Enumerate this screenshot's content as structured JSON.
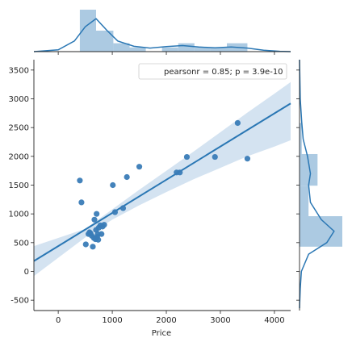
{
  "chart_data": {
    "type": "scatter",
    "kind": "jointplot-regression",
    "xlabel": "Price",
    "ylabel": "",
    "xlim": [
      -450,
      4300
    ],
    "ylim": [
      -680,
      3680
    ],
    "xticks": [
      0,
      1000,
      2000,
      3000,
      4000
    ],
    "yticks": [
      -500,
      0,
      500,
      1000,
      1500,
      2000,
      2500,
      3000,
      3500
    ],
    "legend": {
      "text": "pearsonr = 0.85; p = 3.9e-10",
      "position": "top-right"
    },
    "colors": {
      "points": "#3a7cb7",
      "line": "#2a77b4",
      "ci_band": "#cfe0ef",
      "hist": "#a3c4df",
      "kde": "#2a77b4"
    },
    "points": [
      [
        400,
        1580
      ],
      [
        430,
        1200
      ],
      [
        510,
        470
      ],
      [
        560,
        650
      ],
      [
        580,
        680
      ],
      [
        600,
        660
      ],
      [
        620,
        620
      ],
      [
        640,
        430
      ],
      [
        660,
        580
      ],
      [
        670,
        900
      ],
      [
        690,
        560
      ],
      [
        700,
        720
      ],
      [
        710,
        1000
      ],
      [
        720,
        600
      ],
      [
        730,
        650
      ],
      [
        740,
        550
      ],
      [
        750,
        760
      ],
      [
        780,
        800
      ],
      [
        800,
        650
      ],
      [
        820,
        780
      ],
      [
        850,
        810
      ],
      [
        1010,
        1500
      ],
      [
        1050,
        1030
      ],
      [
        1200,
        1100
      ],
      [
        1270,
        1640
      ],
      [
        1500,
        1820
      ],
      [
        2190,
        1720
      ],
      [
        2250,
        1720
      ],
      [
        2380,
        1990
      ],
      [
        2900,
        1990
      ],
      [
        3320,
        2580
      ],
      [
        3500,
        1960
      ]
    ],
    "regression": {
      "x": [
        -450,
        4300
      ],
      "y": [
        180,
        2920
      ]
    },
    "confidence_band": {
      "x": [
        -450,
        500,
        1000,
        1500,
        2000,
        2500,
        3000,
        3500,
        4000,
        4300
      ],
      "lower": [
        -80,
        590,
        900,
        1150,
        1380,
        1600,
        1800,
        2000,
        2170,
        2280
      ],
      "upper": [
        440,
        740,
        1080,
        1420,
        1750,
        2080,
        2420,
        2760,
        3090,
        3290
      ]
    },
    "x_marginal": {
      "bins": [
        [
          400,
          700,
          10
        ],
        [
          700,
          1020,
          5
        ],
        [
          1020,
          1320,
          2
        ],
        [
          1320,
          1620,
          1
        ],
        [
          1620,
          1920,
          0
        ],
        [
          1920,
          2220,
          1
        ],
        [
          2220,
          2520,
          2
        ],
        [
          2520,
          2820,
          1
        ],
        [
          2820,
          3120,
          1
        ],
        [
          3120,
          3500,
          2
        ]
      ],
      "kde": [
        [
          -450,
          0
        ],
        [
          0,
          0.05
        ],
        [
          300,
          0.3
        ],
        [
          500,
          0.7
        ],
        [
          700,
          0.93
        ],
        [
          900,
          0.6
        ],
        [
          1100,
          0.3
        ],
        [
          1400,
          0.15
        ],
        [
          1700,
          0.1
        ],
        [
          2000,
          0.14
        ],
        [
          2300,
          0.17
        ],
        [
          2600,
          0.13
        ],
        [
          2900,
          0.11
        ],
        [
          3200,
          0.13
        ],
        [
          3500,
          0.1
        ],
        [
          3800,
          0.04
        ],
        [
          4100,
          0.01
        ],
        [
          4300,
          0
        ]
      ]
    },
    "y_marginal": {
      "bins": [
        [
          430,
          960,
          19
        ],
        [
          960,
          1490,
          4
        ],
        [
          1490,
          2040,
          8
        ],
        [
          2040,
          2580,
          1
        ]
      ],
      "kde": [
        [
          -640,
          0
        ],
        [
          -300,
          0.02
        ],
        [
          0,
          0.05
        ],
        [
          300,
          0.25
        ],
        [
          500,
          0.75
        ],
        [
          700,
          0.95
        ],
        [
          900,
          0.6
        ],
        [
          1200,
          0.3
        ],
        [
          1500,
          0.25
        ],
        [
          1700,
          0.3
        ],
        [
          2000,
          0.22
        ],
        [
          2300,
          0.1
        ],
        [
          2600,
          0.06
        ],
        [
          3000,
          0.02
        ],
        [
          3680,
          0
        ]
      ]
    }
  }
}
